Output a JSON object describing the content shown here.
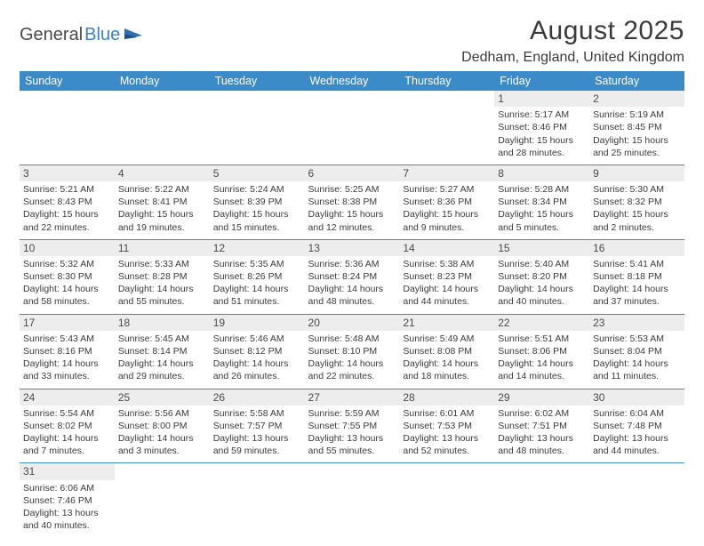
{
  "logo": {
    "part1": "General",
    "part2": "Blue"
  },
  "title": "August 2025",
  "location": "Dedham, England, United Kingdom",
  "colors": {
    "header_bg": "#3b8bc9",
    "header_text": "#ffffff",
    "daynum_bg": "#ededed",
    "border": "#3b8bc9",
    "logo_blue": "#3b7fc4"
  },
  "columns": [
    "Sunday",
    "Monday",
    "Tuesday",
    "Wednesday",
    "Thursday",
    "Friday",
    "Saturday"
  ],
  "weeks": [
    [
      null,
      null,
      null,
      null,
      null,
      {
        "n": "1",
        "sr": "5:17 AM",
        "ss": "8:46 PM",
        "dl": "15 hours and 28 minutes."
      },
      {
        "n": "2",
        "sr": "5:19 AM",
        "ss": "8:45 PM",
        "dl": "15 hours and 25 minutes."
      }
    ],
    [
      {
        "n": "3",
        "sr": "5:21 AM",
        "ss": "8:43 PM",
        "dl": "15 hours and 22 minutes."
      },
      {
        "n": "4",
        "sr": "5:22 AM",
        "ss": "8:41 PM",
        "dl": "15 hours and 19 minutes."
      },
      {
        "n": "5",
        "sr": "5:24 AM",
        "ss": "8:39 PM",
        "dl": "15 hours and 15 minutes."
      },
      {
        "n": "6",
        "sr": "5:25 AM",
        "ss": "8:38 PM",
        "dl": "15 hours and 12 minutes."
      },
      {
        "n": "7",
        "sr": "5:27 AM",
        "ss": "8:36 PM",
        "dl": "15 hours and 9 minutes."
      },
      {
        "n": "8",
        "sr": "5:28 AM",
        "ss": "8:34 PM",
        "dl": "15 hours and 5 minutes."
      },
      {
        "n": "9",
        "sr": "5:30 AM",
        "ss": "8:32 PM",
        "dl": "15 hours and 2 minutes."
      }
    ],
    [
      {
        "n": "10",
        "sr": "5:32 AM",
        "ss": "8:30 PM",
        "dl": "14 hours and 58 minutes."
      },
      {
        "n": "11",
        "sr": "5:33 AM",
        "ss": "8:28 PM",
        "dl": "14 hours and 55 minutes."
      },
      {
        "n": "12",
        "sr": "5:35 AM",
        "ss": "8:26 PM",
        "dl": "14 hours and 51 minutes."
      },
      {
        "n": "13",
        "sr": "5:36 AM",
        "ss": "8:24 PM",
        "dl": "14 hours and 48 minutes."
      },
      {
        "n": "14",
        "sr": "5:38 AM",
        "ss": "8:23 PM",
        "dl": "14 hours and 44 minutes."
      },
      {
        "n": "15",
        "sr": "5:40 AM",
        "ss": "8:20 PM",
        "dl": "14 hours and 40 minutes."
      },
      {
        "n": "16",
        "sr": "5:41 AM",
        "ss": "8:18 PM",
        "dl": "14 hours and 37 minutes."
      }
    ],
    [
      {
        "n": "17",
        "sr": "5:43 AM",
        "ss": "8:16 PM",
        "dl": "14 hours and 33 minutes."
      },
      {
        "n": "18",
        "sr": "5:45 AM",
        "ss": "8:14 PM",
        "dl": "14 hours and 29 minutes."
      },
      {
        "n": "19",
        "sr": "5:46 AM",
        "ss": "8:12 PM",
        "dl": "14 hours and 26 minutes."
      },
      {
        "n": "20",
        "sr": "5:48 AM",
        "ss": "8:10 PM",
        "dl": "14 hours and 22 minutes."
      },
      {
        "n": "21",
        "sr": "5:49 AM",
        "ss": "8:08 PM",
        "dl": "14 hours and 18 minutes."
      },
      {
        "n": "22",
        "sr": "5:51 AM",
        "ss": "8:06 PM",
        "dl": "14 hours and 14 minutes."
      },
      {
        "n": "23",
        "sr": "5:53 AM",
        "ss": "8:04 PM",
        "dl": "14 hours and 11 minutes."
      }
    ],
    [
      {
        "n": "24",
        "sr": "5:54 AM",
        "ss": "8:02 PM",
        "dl": "14 hours and 7 minutes."
      },
      {
        "n": "25",
        "sr": "5:56 AM",
        "ss": "8:00 PM",
        "dl": "14 hours and 3 minutes."
      },
      {
        "n": "26",
        "sr": "5:58 AM",
        "ss": "7:57 PM",
        "dl": "13 hours and 59 minutes."
      },
      {
        "n": "27",
        "sr": "5:59 AM",
        "ss": "7:55 PM",
        "dl": "13 hours and 55 minutes."
      },
      {
        "n": "28",
        "sr": "6:01 AM",
        "ss": "7:53 PM",
        "dl": "13 hours and 52 minutes."
      },
      {
        "n": "29",
        "sr": "6:02 AM",
        "ss": "7:51 PM",
        "dl": "13 hours and 48 minutes."
      },
      {
        "n": "30",
        "sr": "6:04 AM",
        "ss": "7:48 PM",
        "dl": "13 hours and 44 minutes."
      }
    ],
    [
      {
        "n": "31",
        "sr": "6:06 AM",
        "ss": "7:46 PM",
        "dl": "13 hours and 40 minutes."
      },
      null,
      null,
      null,
      null,
      null,
      null
    ]
  ],
  "labels": {
    "sunrise": "Sunrise:",
    "sunset": "Sunset:",
    "daylight": "Daylight:"
  }
}
